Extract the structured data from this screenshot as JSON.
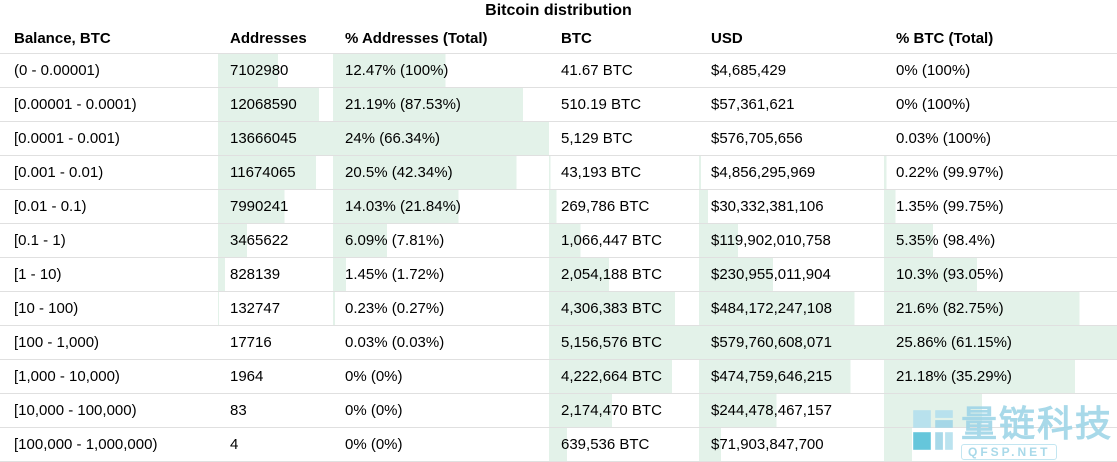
{
  "title": "Bitcoin distribution",
  "watermark": {
    "text": "量链科技",
    "sub": "QFSP.NET",
    "color": "#9fd5e7",
    "logo_dark": "#55c0d8",
    "logo_light": "#b4e0ee"
  },
  "chart_data": {
    "type": "table",
    "title": "Bitcoin distribution",
    "bar_color": "#e3f2e9",
    "columns": [
      "Balance, BTC",
      "Addresses",
      "% Addresses (Total)",
      "BTC",
      "USD",
      "% BTC (Total)"
    ],
    "rows": [
      [
        "(0 - 0.00001)",
        "7102980",
        "12.47% (100%)",
        "41.67 BTC",
        "$4,685,429",
        "0% (100%)"
      ],
      [
        "[0.00001 - 0.0001)",
        "12068590",
        "21.19% (87.53%)",
        "510.19 BTC",
        "$57,361,621",
        "0% (100%)"
      ],
      [
        "[0.0001 - 0.001)",
        "13666045",
        "24% (66.34%)",
        "5,129 BTC",
        "$576,705,656",
        "0.03% (100%)"
      ],
      [
        "[0.001 - 0.01)",
        "11674065",
        "20.5% (42.34%)",
        "43,193 BTC",
        "$4,856,295,969",
        "0.22% (99.97%)"
      ],
      [
        "[0.01 - 0.1)",
        "7990241",
        "14.03% (21.84%)",
        "269,786 BTC",
        "$30,332,381,106",
        "1.35% (99.75%)"
      ],
      [
        "[0.1 - 1)",
        "3465622",
        "6.09% (7.81%)",
        "1,066,447 BTC",
        "$119,902,010,758",
        "5.35% (98.4%)"
      ],
      [
        "[1 - 10)",
        "828139",
        "1.45% (1.72%)",
        "2,054,188 BTC",
        "$230,955,011,904",
        "10.3% (93.05%)"
      ],
      [
        "[10 - 100)",
        "132747",
        "0.23% (0.27%)",
        "4,306,383 BTC",
        "$484,172,247,108",
        "21.6% (82.75%)"
      ],
      [
        "[100 - 1,000)",
        "17716",
        "0.03% (0.03%)",
        "5,156,576 BTC",
        "$579,760,608,071",
        "25.86% (61.15%)"
      ],
      [
        "[1,000 - 10,000)",
        "1964",
        "0% (0%)",
        "4,222,664 BTC",
        "$474,759,646,215",
        "21.18% (35.29%)"
      ],
      [
        "[10,000 - 100,000)",
        "83",
        "0% (0%)",
        "2,174,470 BTC",
        "$244,478,467,157",
        ""
      ],
      [
        "[100,000 - 1,000,000)",
        "4",
        "0% (0%)",
        "639,536 BTC",
        "$71,903,847,700",
        ""
      ]
    ],
    "bars": [
      [
        0,
        0.52,
        0.52,
        0,
        0,
        0
      ],
      [
        0,
        0.88,
        0.88,
        0,
        0,
        0
      ],
      [
        0,
        1.0,
        1.0,
        0,
        0,
        0
      ],
      [
        0,
        0.85,
        0.85,
        0.01,
        0.01,
        0.01
      ],
      [
        0,
        0.58,
        0.58,
        0.05,
        0.05,
        0.05
      ],
      [
        0,
        0.25,
        0.25,
        0.21,
        0.21,
        0.21
      ],
      [
        0,
        0.06,
        0.06,
        0.4,
        0.4,
        0.4
      ],
      [
        0,
        0.01,
        0.01,
        0.84,
        0.84,
        0.84
      ],
      [
        0,
        0,
        0,
        1.0,
        1.0,
        1.0
      ],
      [
        0,
        0,
        0,
        0.82,
        0.82,
        0.82
      ],
      [
        0,
        0,
        0,
        0.42,
        0.42,
        0.42
      ],
      [
        0,
        0,
        0,
        0.12,
        0.12,
        0.12
      ]
    ]
  }
}
